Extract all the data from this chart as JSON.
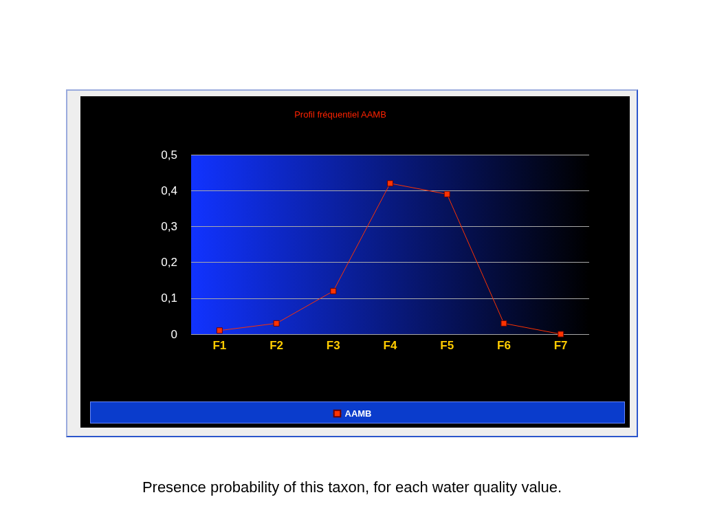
{
  "chart_data": {
    "type": "line",
    "title": "Profil fréquentiel AAMB",
    "categories": [
      "F1",
      "F2",
      "F3",
      "F4",
      "F5",
      "F6",
      "F7"
    ],
    "series": [
      {
        "name": "AAMB",
        "color": "#ff3300",
        "values": [
          0.01,
          0.03,
          0.12,
          0.42,
          0.39,
          0.03,
          0.0
        ]
      }
    ],
    "ylim": [
      0,
      0.5
    ],
    "yticks": [
      0,
      {
        "value": 0.1,
        "label": "0,1"
      },
      {
        "value": 0.2,
        "label": "0,2"
      },
      {
        "value": 0.3,
        "label": "0,3"
      },
      {
        "value": 0.4,
        "label": "0,4"
      },
      {
        "value": 0.5,
        "label": "0,5"
      }
    ],
    "grid": "y",
    "legend": "bottom",
    "marker": "square",
    "line_style": "solid",
    "annotations": [
      "Presence probability of this taxon, for each water quality value."
    ]
  }
}
